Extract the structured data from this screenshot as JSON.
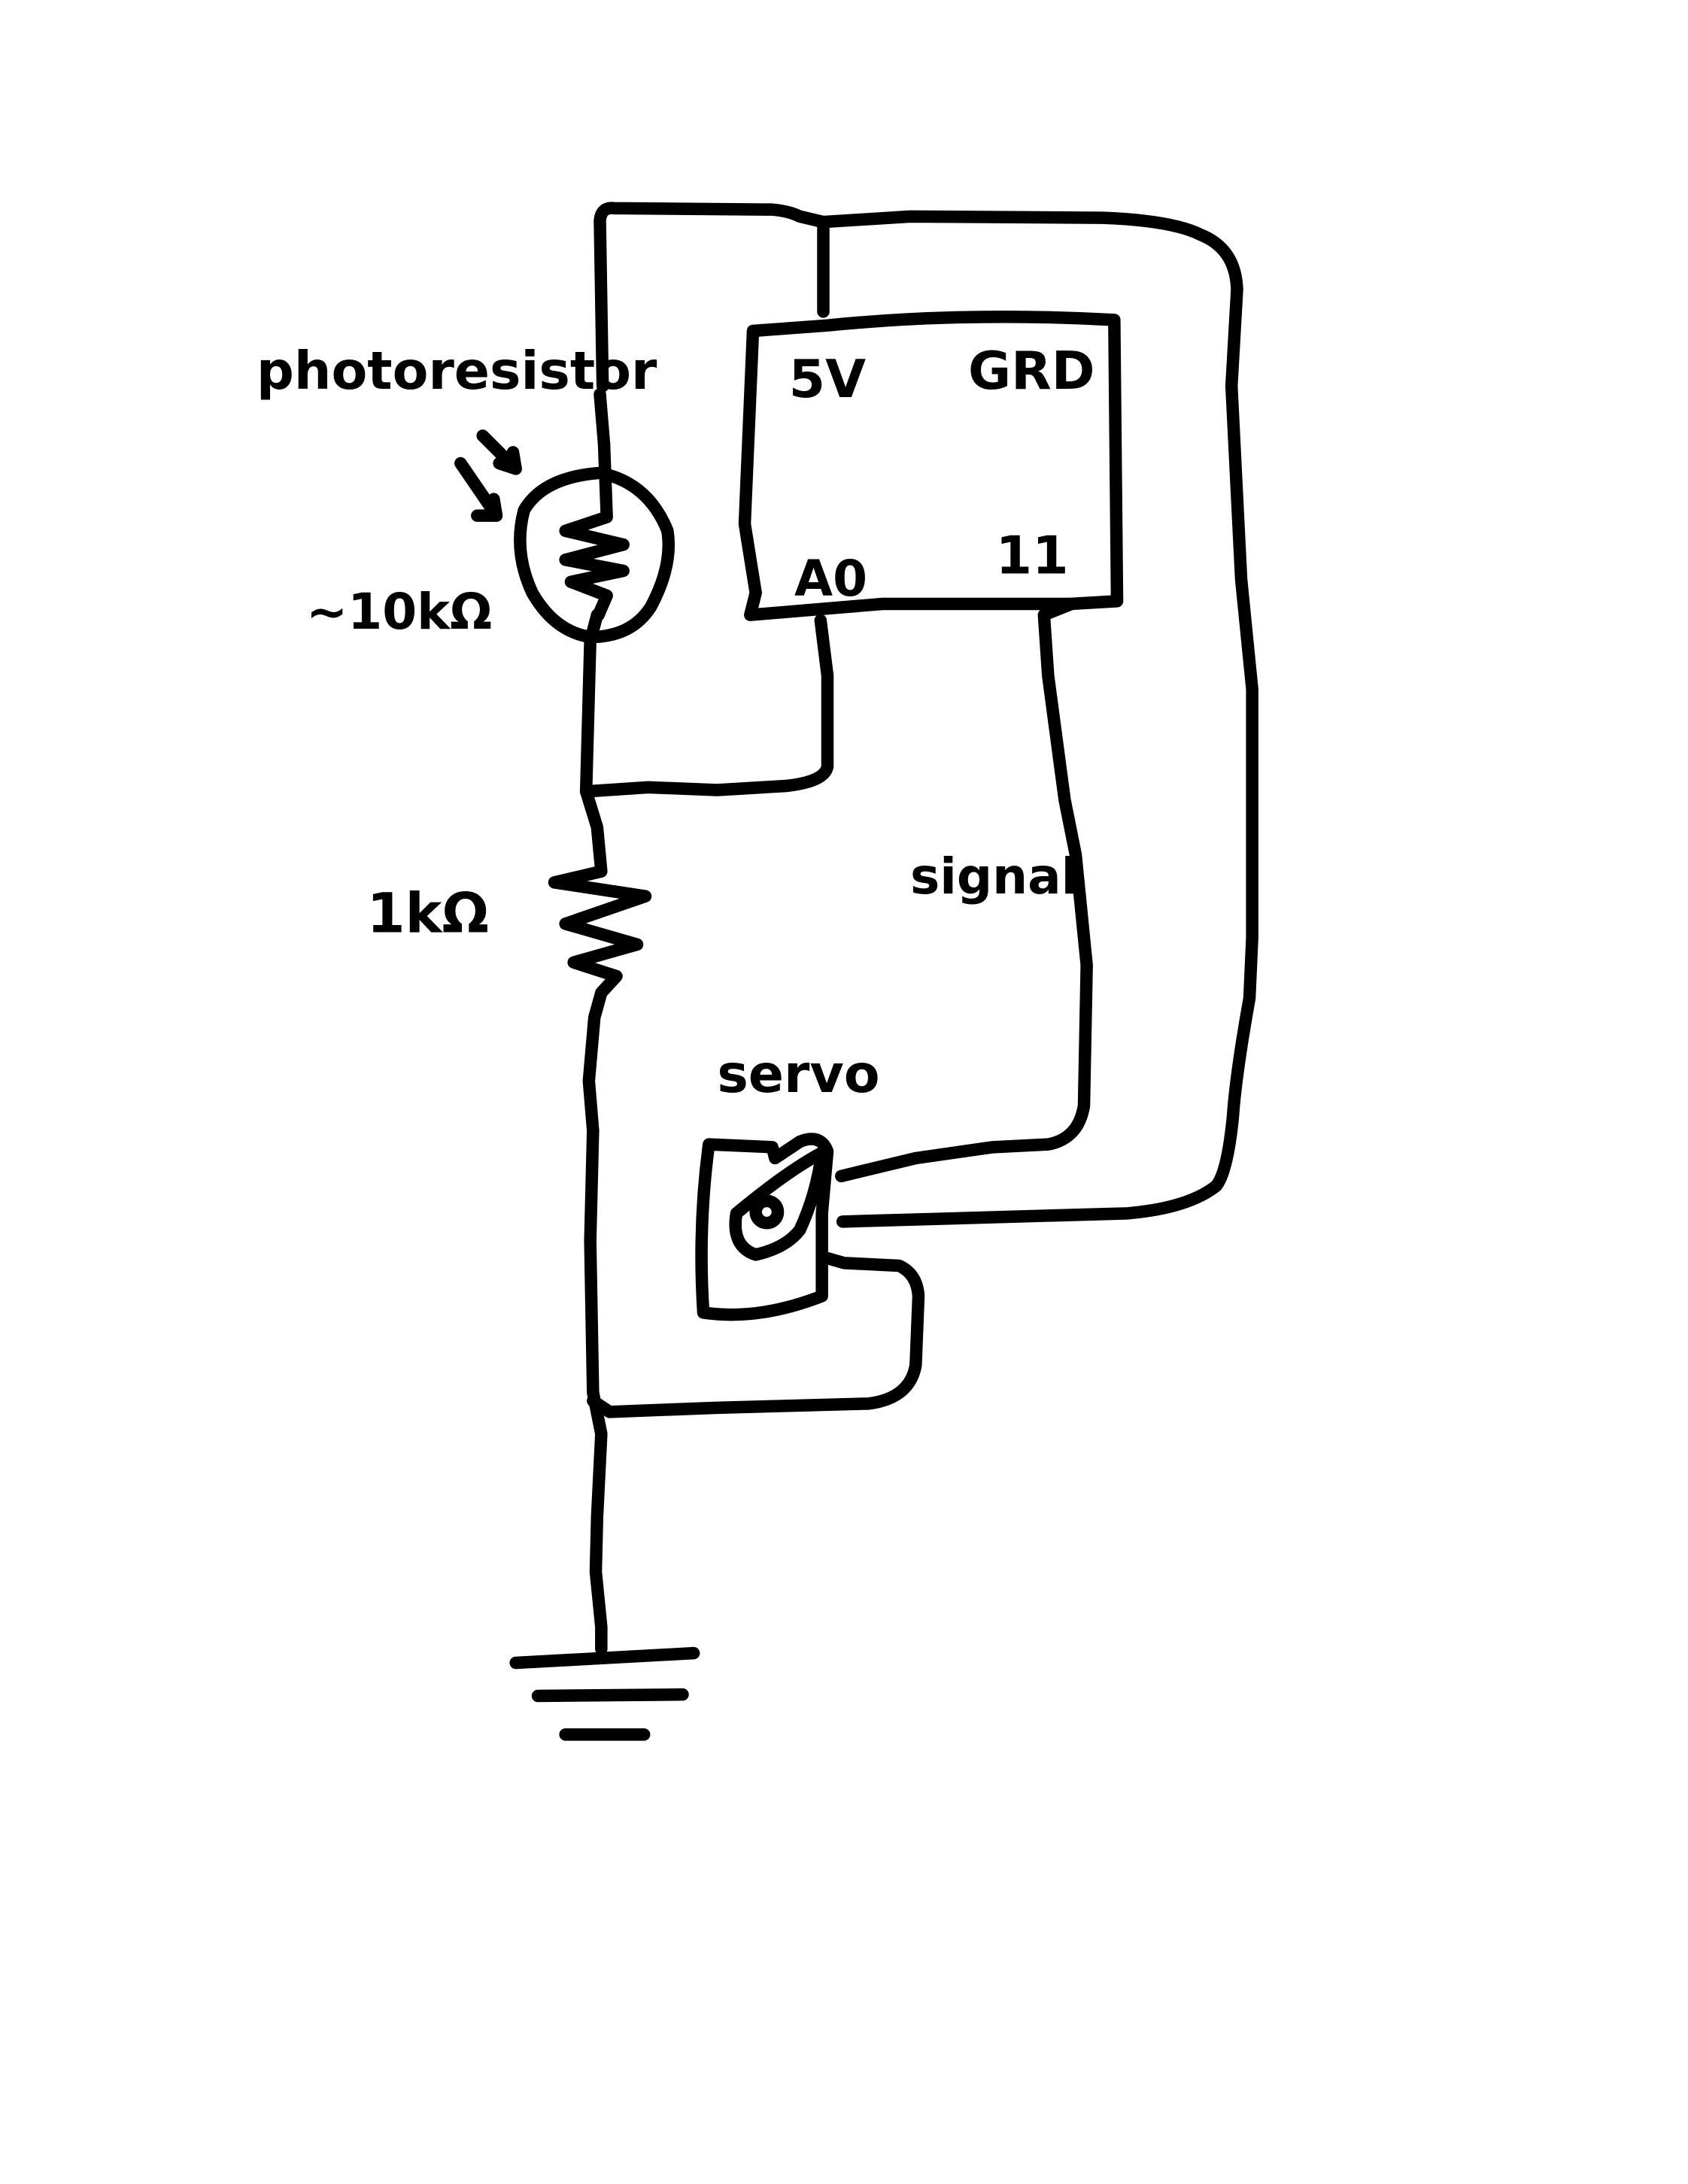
{
  "labels": {
    "photoresistor": "photoresistor",
    "photoresistor_value": "~10kΩ",
    "resistor_value": "1kΩ",
    "pin_5v": "5V",
    "pin_grd": "GRD",
    "pin_a0": "A0",
    "pin_11": "11",
    "signal": "signal",
    "servo": "servo"
  },
  "colors": {
    "ink": "#000000",
    "paper": "#ffffff"
  }
}
